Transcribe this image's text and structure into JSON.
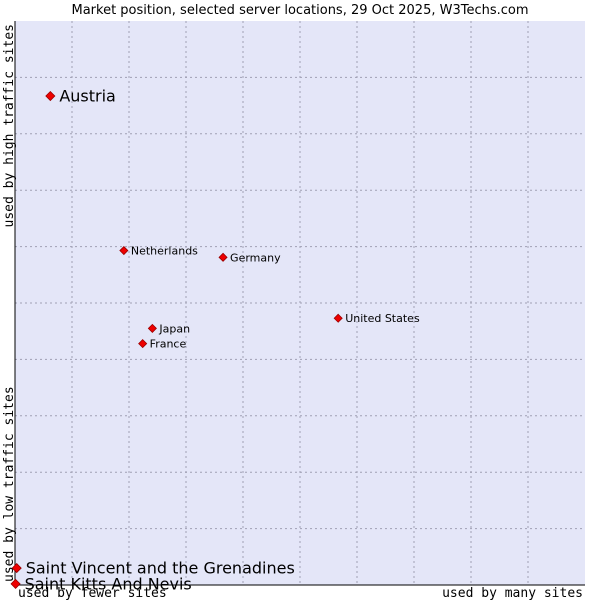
{
  "chart_data": {
    "type": "scatter",
    "title": "Market position, selected server locations, 29 Oct 2025, W3Techs.com",
    "xlabel_left": "used by fewer sites",
    "xlabel_right": "used by many sites",
    "ylabel_top": "used by high traffic sites",
    "ylabel_bottom": "used by low traffic sites",
    "xlim": [
      0,
      100
    ],
    "ylim": [
      0,
      100
    ],
    "grid": true,
    "colors": {
      "plot_bg": "#e4e6f8",
      "point": "#ee0000",
      "point_stroke": "#990000",
      "axis": "#000000"
    },
    "points": [
      {
        "label": "Austria",
        "x": 6.2,
        "y": 86.7,
        "size": "large"
      },
      {
        "label": "Netherlands",
        "x": 19.1,
        "y": 59.3,
        "size": "small"
      },
      {
        "label": "Germany",
        "x": 36.5,
        "y": 58.1,
        "size": "small"
      },
      {
        "label": "United States",
        "x": 56.7,
        "y": 47.3,
        "size": "small"
      },
      {
        "label": "Japan",
        "x": 24.1,
        "y": 45.5,
        "size": "small"
      },
      {
        "label": "France",
        "x": 22.4,
        "y": 42.8,
        "size": "small"
      },
      {
        "label": "Saint Vincent and the Grenadines",
        "x": 0.3,
        "y": 3.0,
        "size": "large"
      },
      {
        "label": "Saint Kitts And Nevis",
        "x": 0.1,
        "y": 0.2,
        "size": "large"
      }
    ]
  }
}
